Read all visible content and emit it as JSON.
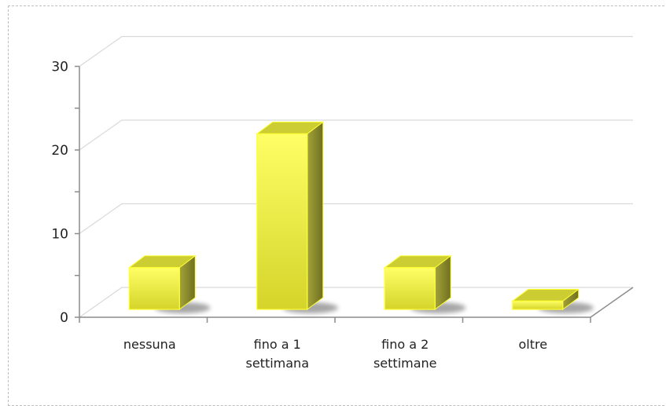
{
  "chart_data": {
    "type": "bar",
    "categories": [
      [
        "nessuna"
      ],
      [
        "fino a 1",
        "settimana"
      ],
      [
        "fino a 2",
        "settimane"
      ],
      [
        "oltre"
      ]
    ],
    "values": [
      5,
      21,
      5,
      1
    ],
    "ylim": [
      0,
      30
    ],
    "yticks": [
      "0",
      "10",
      "20",
      "30"
    ],
    "grid": true,
    "legend": "none",
    "colors": {
      "bar_front_top": "#ffff66",
      "bar_front_bottom": "#d4d42a",
      "bar_top": "#cccc33",
      "bar_side": "#8f8f2a",
      "bar_edge": "#ffff33",
      "grid": "#d9d9d9",
      "axis": "#8c8c8c",
      "frame": "#bdbdbd"
    }
  }
}
